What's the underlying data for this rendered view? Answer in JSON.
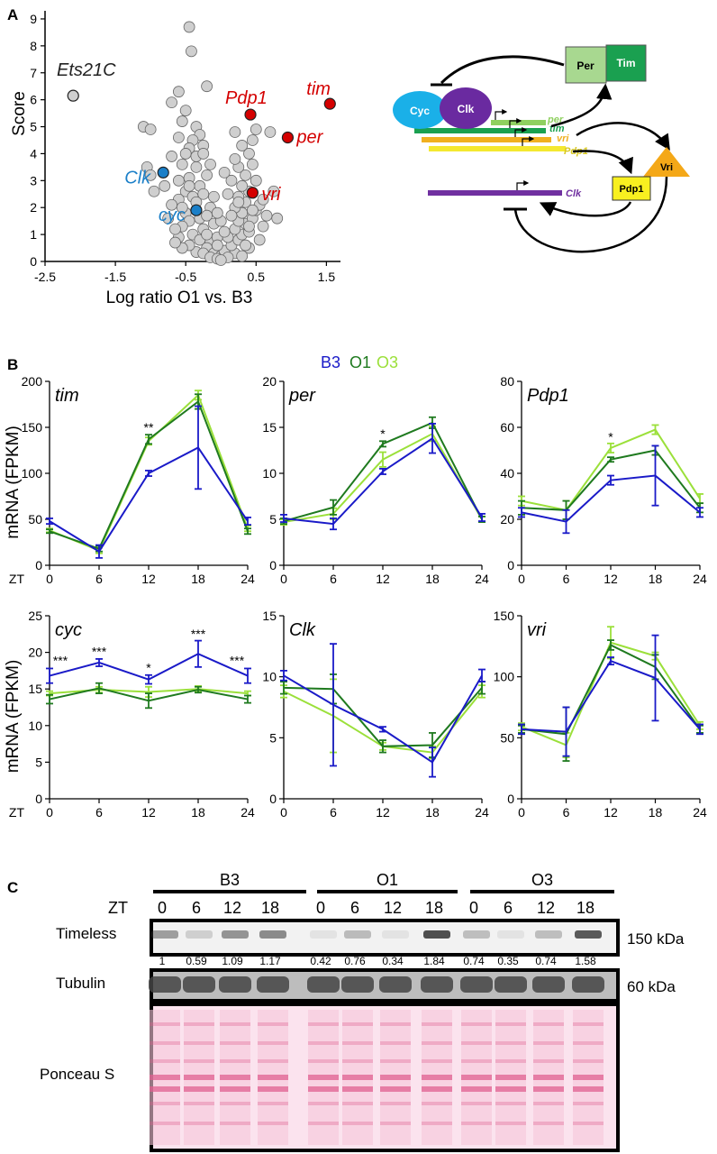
{
  "panel_labels": {
    "a": "A",
    "b": "B",
    "c": "C"
  },
  "colors": {
    "b3": "#1a1ac8",
    "o1": "#1f7a1f",
    "o3": "#9be03a",
    "red": "#d40000",
    "blue": "#1a7fc8",
    "gray": "#cfcfcf"
  },
  "network": {
    "cyc": "Cyc",
    "clk": "Clk",
    "per": "Per",
    "tim": "Tim",
    "vri": "Vri",
    "pdp1": "Pdp1",
    "gene_per": "per",
    "gene_tim": "tim",
    "gene_vri": "vri",
    "gene_pdp1": "Pdp1",
    "gene_clk": "Clk"
  },
  "legend": {
    "b3": "B3",
    "o1": "O1",
    "o3": "O3"
  },
  "blot": {
    "groups": [
      "B3",
      "O1",
      "O3"
    ],
    "zt_label": "ZT",
    "zt": [
      "0",
      "6",
      "12",
      "18",
      "0",
      "6",
      "12",
      "18",
      "0",
      "6",
      "12",
      "18"
    ],
    "rows": {
      "timeless": "Timeless",
      "tubulin": "Tubulin",
      "ponceau": "Ponceau S"
    },
    "kda": {
      "timeless": "150 kDa",
      "tubulin": "60 kDa"
    },
    "quant": [
      "1",
      "0.59",
      "1.09",
      "1.17",
      "0.42",
      "0.76",
      "0.34",
      "1.84",
      "0.74",
      "0.35",
      "0.74",
      "1.58"
    ]
  },
  "chart_data": [
    {
      "type": "scatter",
      "xlabel": "Log ratio O1 vs. B3",
      "ylabel": "Score",
      "xlim": [
        -2.5,
        1.7
      ],
      "ylim": [
        0,
        9.3
      ],
      "xticks": [
        "-2.5",
        "-1.5",
        "-0.5",
        "0.5",
        "1.5"
      ],
      "yticks": [
        "0",
        "1",
        "2",
        "3",
        "4",
        "5",
        "6",
        "7",
        "8",
        "9"
      ],
      "labeled_points": [
        {
          "label": "Ets21C",
          "x": -2.1,
          "y": 6.15,
          "color": "gray"
        },
        {
          "label": "tim",
          "x": 1.55,
          "y": 5.85,
          "color": "red"
        },
        {
          "label": "Pdp1",
          "x": 0.42,
          "y": 5.45,
          "color": "red"
        },
        {
          "label": "per",
          "x": 0.95,
          "y": 4.6,
          "color": "red"
        },
        {
          "label": "vri",
          "x": 0.45,
          "y": 2.55,
          "color": "red"
        },
        {
          "label": "Clk",
          "x": -0.82,
          "y": 3.3,
          "color": "blue"
        },
        {
          "label": "cyc",
          "x": -0.35,
          "y": 1.9,
          "color": "blue"
        }
      ],
      "points": [
        [
          -0.45,
          8.7
        ],
        [
          -0.42,
          7.8
        ],
        [
          -0.2,
          6.5
        ],
        [
          -0.6,
          6.3
        ],
        [
          -0.7,
          5.9
        ],
        [
          -0.5,
          5.6
        ],
        [
          -1.1,
          5.0
        ],
        [
          -1.0,
          4.9
        ],
        [
          -0.55,
          5.2
        ],
        [
          -0.35,
          5.0
        ],
        [
          -0.3,
          4.7
        ],
        [
          -0.4,
          4.5
        ],
        [
          -0.6,
          4.6
        ],
        [
          -0.45,
          4.2
        ],
        [
          -0.25,
          4.3
        ],
        [
          -0.5,
          4.0
        ],
        [
          -0.7,
          3.9
        ],
        [
          -1.05,
          3.5
        ],
        [
          -0.95,
          2.6
        ],
        [
          -1.0,
          3.2
        ],
        [
          -0.55,
          3.6
        ],
        [
          -0.35,
          3.5
        ],
        [
          -0.2,
          3.2
        ],
        [
          -0.45,
          3.1
        ],
        [
          -0.6,
          3.0
        ],
        [
          -0.3,
          2.8
        ],
        [
          -0.5,
          2.6
        ],
        [
          -0.4,
          2.4
        ],
        [
          -0.25,
          2.5
        ],
        [
          -0.6,
          2.3
        ],
        [
          -0.7,
          2.1
        ],
        [
          -0.35,
          2.2
        ],
        [
          -0.15,
          2.0
        ],
        [
          -0.5,
          1.8
        ],
        [
          -0.3,
          1.6
        ],
        [
          -0.45,
          1.5
        ],
        [
          -0.2,
          1.7
        ],
        [
          -0.55,
          1.3
        ],
        [
          -0.25,
          1.2
        ],
        [
          -0.1,
          1.4
        ],
        [
          -0.4,
          1.0
        ],
        [
          -0.6,
          0.9
        ],
        [
          -0.3,
          0.8
        ],
        [
          -0.15,
          0.7
        ],
        [
          -0.05,
          0.9
        ],
        [
          -0.2,
          0.5
        ],
        [
          -0.1,
          0.3
        ],
        [
          0.0,
          0.2
        ],
        [
          0.05,
          0.4
        ],
        [
          -0.05,
          0.6
        ],
        [
          0.2,
          0.3
        ],
        [
          0.15,
          0.6
        ],
        [
          0.25,
          0.8
        ],
        [
          0.1,
          0.9
        ],
        [
          0.3,
          1.0
        ],
        [
          0.2,
          1.2
        ],
        [
          0.35,
          1.4
        ],
        [
          0.4,
          1.1
        ],
        [
          0.25,
          1.5
        ],
        [
          0.45,
          1.6
        ],
        [
          0.3,
          1.8
        ],
        [
          0.5,
          1.9
        ],
        [
          0.2,
          2.0
        ],
        [
          0.35,
          2.2
        ],
        [
          0.55,
          2.1
        ],
        [
          0.25,
          2.4
        ],
        [
          0.4,
          2.6
        ],
        [
          0.6,
          2.3
        ],
        [
          0.3,
          2.8
        ],
        [
          0.15,
          3.0
        ],
        [
          0.35,
          3.2
        ],
        [
          0.5,
          3.0
        ],
        [
          0.25,
          3.5
        ],
        [
          0.45,
          3.6
        ],
        [
          0.2,
          3.8
        ],
        [
          0.4,
          4.0
        ],
        [
          0.3,
          4.3
        ],
        [
          0.45,
          4.5
        ],
        [
          0.2,
          4.8
        ],
        [
          0.5,
          4.9
        ],
        [
          0.7,
          4.8
        ],
        [
          0.4,
          1.3
        ],
        [
          0.55,
          0.8
        ],
        [
          0.8,
          1.6
        ],
        [
          0.75,
          2.6
        ],
        [
          0.6,
          1.3
        ],
        [
          0.4,
          0.5
        ],
        [
          0.3,
          0.2
        ],
        [
          0.1,
          0.15
        ],
        [
          0.15,
          1.7
        ],
        [
          0.05,
          1.1
        ],
        [
          0.0,
          1.5
        ],
        [
          0.1,
          2.5
        ],
        [
          0.05,
          3.3
        ],
        [
          0.25,
          2.2
        ],
        [
          0.35,
          0.6
        ],
        [
          0.45,
          1.9
        ],
        [
          0.65,
          1.7
        ],
        [
          -0.35,
          0.35
        ],
        [
          -0.45,
          0.6
        ],
        [
          -0.55,
          0.5
        ],
        [
          -0.65,
          0.7
        ],
        [
          -0.25,
          0.3
        ],
        [
          -0.15,
          0.15
        ],
        [
          -0.05,
          0.1
        ],
        [
          0.0,
          0.05
        ],
        [
          -0.35,
          1.9
        ],
        [
          -0.75,
          1.6
        ],
        [
          -0.8,
          2.8
        ],
        [
          -0.65,
          1.2
        ],
        [
          -0.55,
          2.0
        ],
        [
          -0.45,
          2.8
        ],
        [
          -0.35,
          3.9
        ],
        [
          -0.25,
          4.0
        ],
        [
          -0.15,
          3.6
        ],
        [
          -0.1,
          2.4
        ],
        [
          -0.05,
          1.8
        ],
        [
          -0.2,
          1.0
        ]
      ]
    },
    {
      "type": "line",
      "gene": "tim",
      "x": [
        0,
        6,
        12,
        18,
        24
      ],
      "ylim": [
        0,
        200
      ],
      "yticks": [
        "0",
        "50",
        "100",
        "150",
        "200"
      ],
      "xticks": [
        "0",
        "6",
        "12",
        "18",
        "24"
      ],
      "ylabel": "mRNA (FPKM)",
      "xlabel": "ZT",
      "series": [
        {
          "name": "B3",
          "values": [
            48,
            15,
            100,
            128,
            48
          ],
          "err": [
            3,
            7,
            3,
            45,
            4
          ]
        },
        {
          "name": "O1",
          "values": [
            37,
            18,
            137,
            178,
            37
          ],
          "err": [
            2,
            3,
            5,
            8,
            3
          ]
        },
        {
          "name": "O3",
          "values": [
            38,
            16,
            135,
            185,
            40
          ],
          "err": [
            2,
            3,
            4,
            5,
            3
          ]
        }
      ],
      "stars": [
        {
          "x": 12,
          "y": 145,
          "text": "**"
        }
      ]
    },
    {
      "type": "line",
      "gene": "per",
      "x": [
        0,
        6,
        12,
        18,
        24
      ],
      "ylim": [
        0,
        20
      ],
      "yticks": [
        "0",
        "5",
        "10",
        "15",
        "20"
      ],
      "xticks": [
        "0",
        "6",
        "12",
        "18",
        "24"
      ],
      "ylabel": "",
      "xlabel": "",
      "series": [
        {
          "name": "B3",
          "values": [
            5.1,
            4.5,
            10.2,
            13.8,
            5.2
          ],
          "err": [
            0.4,
            0.6,
            0.3,
            1.6,
            0.4
          ]
        },
        {
          "name": "O1",
          "values": [
            4.8,
            6.3,
            13.2,
            15.5,
            5.0
          ],
          "err": [
            0.3,
            0.8,
            0.3,
            0.6,
            0.3
          ]
        },
        {
          "name": "O3",
          "values": [
            4.7,
            5.6,
            11.5,
            14.3,
            5.0
          ],
          "err": [
            0.3,
            0.6,
            0.8,
            0.8,
            0.3
          ]
        }
      ],
      "stars": [
        {
          "x": 12,
          "y": 13.8,
          "text": "*"
        }
      ]
    },
    {
      "type": "line",
      "gene": "Pdp1",
      "x": [
        0,
        6,
        12,
        18,
        24
      ],
      "ylim": [
        0,
        80
      ],
      "yticks": [
        "0",
        "20",
        "40",
        "60",
        "80"
      ],
      "xticks": [
        "0",
        "6",
        "12",
        "18",
        "24"
      ],
      "ylabel": "",
      "xlabel": "",
      "series": [
        {
          "name": "B3",
          "values": [
            23,
            19,
            37,
            39,
            23
          ],
          "err": [
            2,
            5,
            2,
            13,
            2
          ]
        },
        {
          "name": "O1",
          "values": [
            25,
            24,
            46,
            50,
            25
          ],
          "err": [
            3,
            4,
            1,
            2,
            2
          ]
        },
        {
          "name": "O3",
          "values": [
            28,
            24,
            51,
            59,
            29
          ],
          "err": [
            2,
            4,
            2,
            2,
            2
          ]
        }
      ],
      "stars": [
        {
          "x": 12,
          "y": 54,
          "text": "*"
        }
      ]
    },
    {
      "type": "line",
      "gene": "cyc",
      "x": [
        0,
        6,
        12,
        18,
        24
      ],
      "ylim": [
        0,
        25
      ],
      "yticks": [
        "0",
        "5",
        "10",
        "15",
        "20",
        "25"
      ],
      "xticks": [
        "0",
        "6",
        "12",
        "18",
        "24"
      ],
      "ylabel": "mRNA (FPKM)",
      "xlabel": "ZT",
      "series": [
        {
          "name": "B3",
          "values": [
            16.8,
            18.6,
            16.3,
            19.8,
            16.8
          ],
          "err": [
            1.0,
            0.5,
            0.6,
            1.8,
            1.0
          ]
        },
        {
          "name": "O1",
          "values": [
            13.6,
            15.1,
            13.4,
            14.9,
            13.6
          ],
          "err": [
            0.6,
            0.7,
            1.0,
            0.4,
            0.5
          ]
        },
        {
          "name": "O3",
          "values": [
            14.4,
            14.9,
            14.6,
            15.0,
            14.4
          ],
          "err": [
            0.3,
            0.4,
            0.7,
            0.4,
            0.3
          ]
        }
      ],
      "stars": [
        {
          "x": 0,
          "y": 18.3,
          "text": "***"
        },
        {
          "x": 6,
          "y": 19.5,
          "text": "***"
        },
        {
          "x": 12,
          "y": 17.3,
          "text": "*"
        },
        {
          "x": 18,
          "y": 21.9,
          "text": "***"
        },
        {
          "x": 24,
          "y": 18.3,
          "text": "***"
        }
      ]
    },
    {
      "type": "line",
      "gene": "Clk",
      "x": [
        0,
        6,
        12,
        18,
        24
      ],
      "ylim": [
        0,
        15
      ],
      "yticks": [
        "0",
        "5",
        "10",
        "15"
      ],
      "xticks": [
        "0",
        "6",
        "12",
        "18",
        "24"
      ],
      "ylabel": "",
      "xlabel": "",
      "series": [
        {
          "name": "B3",
          "values": [
            10.1,
            7.7,
            5.7,
            3.0,
            10.1
          ],
          "err": [
            0.4,
            5.0,
            0.2,
            1.2,
            0.5
          ]
        },
        {
          "name": "O1",
          "values": [
            9.1,
            9.0,
            4.3,
            4.4,
            9.1
          ],
          "err": [
            0.5,
            1.2,
            0.5,
            1.0,
            0.5
          ]
        },
        {
          "name": "O3",
          "values": [
            8.8,
            6.8,
            4.3,
            3.8,
            8.8
          ],
          "err": [
            0.5,
            3.0,
            0.3,
            0.5,
            0.5
          ]
        }
      ]
    },
    {
      "type": "line",
      "gene": "vri",
      "x": [
        0,
        6,
        12,
        18,
        24
      ],
      "ylim": [
        0,
        150
      ],
      "yticks": [
        "0",
        "50",
        "100",
        "150"
      ],
      "xticks": [
        "0",
        "6",
        "12",
        "18",
        "24"
      ],
      "ylabel": "",
      "xlabel": "",
      "series": [
        {
          "name": "B3",
          "values": [
            57,
            55,
            113,
            99,
            57
          ],
          "err": [
            4,
            20,
            3,
            35,
            4
          ]
        },
        {
          "name": "O1",
          "values": [
            57,
            53,
            126,
            108,
            57
          ],
          "err": [
            3,
            22,
            4,
            10,
            3
          ]
        },
        {
          "name": "O3",
          "values": [
            59,
            44,
            128,
            117,
            60
          ],
          "err": [
            3,
            10,
            13,
            3,
            3
          ]
        }
      ]
    }
  ]
}
